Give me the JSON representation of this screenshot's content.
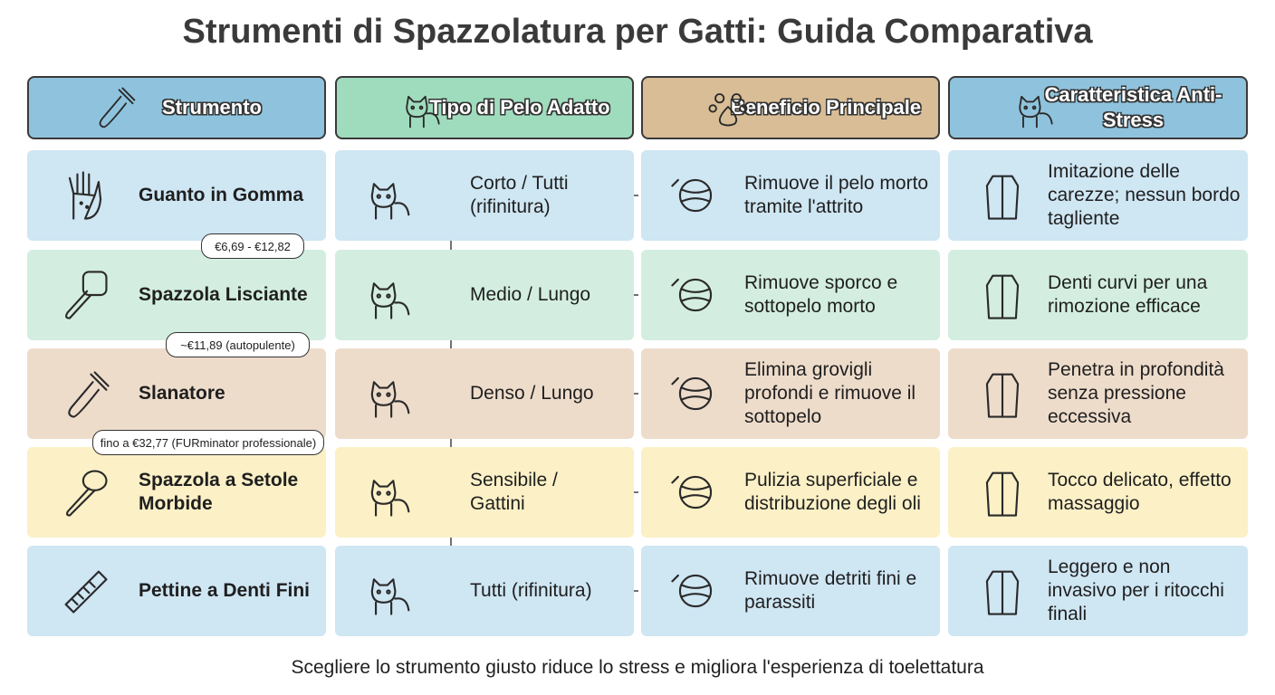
{
  "title": "Strumenti di Spazzolatura per Gatti: Guida Comparativa",
  "columns": [
    "Strumento",
    "Tipo di Pelo Adatto",
    "Beneficio Principale",
    "Caratteristica Anti-Stress"
  ],
  "rows": [
    {
      "tool": "Guanto in Gomma",
      "coat": "Corto / Tutti (rifinitura)",
      "benefit": "Rimuove il pelo morto tramite l'attrito",
      "anti_stress": "Imitazione delle carezze; nessun bordo tagliente"
    },
    {
      "tool": "Spazzola Lisciante",
      "coat": "Medio / Lungo",
      "benefit": "Rimuove sporco e sottopelo morto",
      "anti_stress": "Denti curvi per una rimozione efficace"
    },
    {
      "tool": "Slanatore",
      "coat": "Denso / Lungo",
      "benefit": "Elimina grovigli profondi e rimuove il sottopelo",
      "anti_stress": "Penetra in profondità senza pressione eccessiva"
    },
    {
      "tool": "Spazzola a Setole Morbide",
      "coat": "Sensibile / Gattini",
      "benefit": "Pulizia superficiale e distribuzione degli oli",
      "anti_stress": "Tocco delicato, effetto massaggio"
    },
    {
      "tool": "Pettine a Denti Fini",
      "coat": "Tutti (rifinitura)",
      "benefit": "Rimuove detriti fini e parassiti",
      "anti_stress": "Leggero e non invasivo per i ritocchi finali"
    }
  ],
  "prices": [
    "€6,69 - €12,82",
    "~€11,89 (autopulente)",
    "fino a €32,77 (FURminator professionale)"
  ],
  "footer": "Scegliere lo strumento giusto riduce lo stress e migliora l'esperienza di toelettatura"
}
